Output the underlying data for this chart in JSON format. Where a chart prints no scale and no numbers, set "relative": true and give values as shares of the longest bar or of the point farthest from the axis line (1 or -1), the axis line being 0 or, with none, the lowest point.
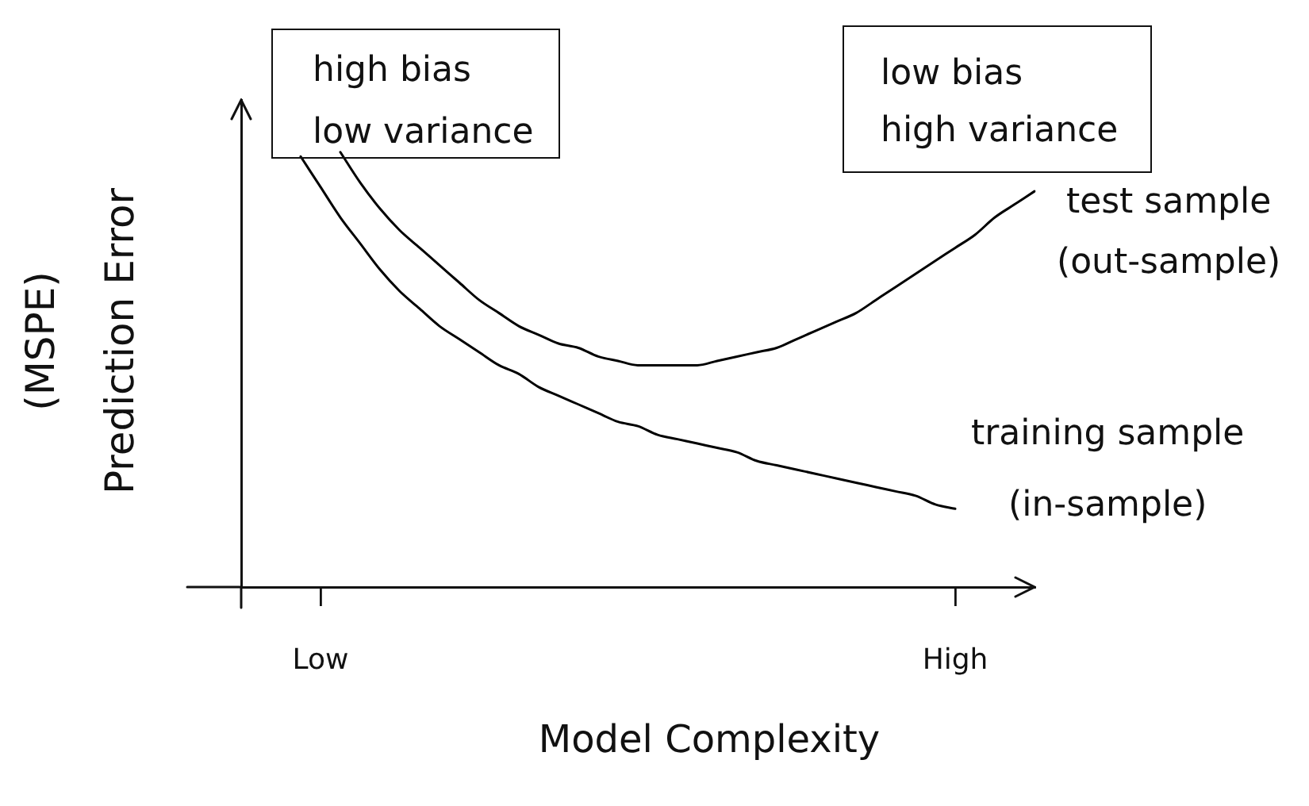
{
  "chart_data": {
    "type": "line",
    "xlabel": "Model Complexity",
    "ylabel": "(MSPE)\nPrediction Error",
    "annotations": [
      "high bias\nlow variance",
      "low bias\nhigh variance"
    ],
    "categories": [
      null,
      null,
      null,
      null,
      "Low",
      null,
      null,
      null,
      null,
      null,
      null,
      null,
      null,
      null,
      null,
      null,
      null,
      null,
      null,
      null,
      null,
      null,
      null,
      null,
      null,
      null,
      null,
      null,
      null,
      null,
      null,
      null,
      null,
      null,
      null,
      null,
      "High",
      null,
      null,
      null,
      null
    ],
    "relative": true,
    "tick_labels": "x",
    "grid": false,
    "legend": false,
    "marker": "none",
    "line_style": "solid",
    "series": [
      {
        "name": "test sample\n(out-sample)",
        "color": "#000000",
        "values": [
          null,
          null,
          null,
          null,
          null,
          1.0,
          0.93,
          0.87,
          0.82,
          0.78,
          0.74,
          0.7,
          0.66,
          0.63,
          0.6,
          0.58,
          0.56,
          0.55,
          0.53,
          0.52,
          0.51,
          0.51,
          0.51,
          0.51,
          0.52,
          0.53,
          0.54,
          0.55,
          0.57,
          0.59,
          0.61,
          0.63,
          0.66,
          0.69,
          0.72,
          0.75,
          0.78,
          0.81,
          0.85,
          0.88,
          0.91
        ]
      },
      {
        "name": "training sample\n(in-sample)",
        "color": "#000000",
        "values": [
          null,
          null,
          null,
          0.99,
          0.92,
          0.85,
          0.79,
          0.73,
          0.68,
          0.64,
          0.6,
          0.57,
          0.54,
          0.51,
          0.49,
          0.46,
          0.44,
          0.42,
          0.4,
          0.38,
          0.37,
          0.35,
          0.34,
          0.33,
          0.32,
          0.31,
          0.29,
          0.28,
          0.27,
          0.26,
          0.25,
          0.24,
          0.23,
          0.22,
          0.21,
          0.19,
          0.18,
          null,
          null,
          null,
          null
        ]
      }
    ]
  }
}
